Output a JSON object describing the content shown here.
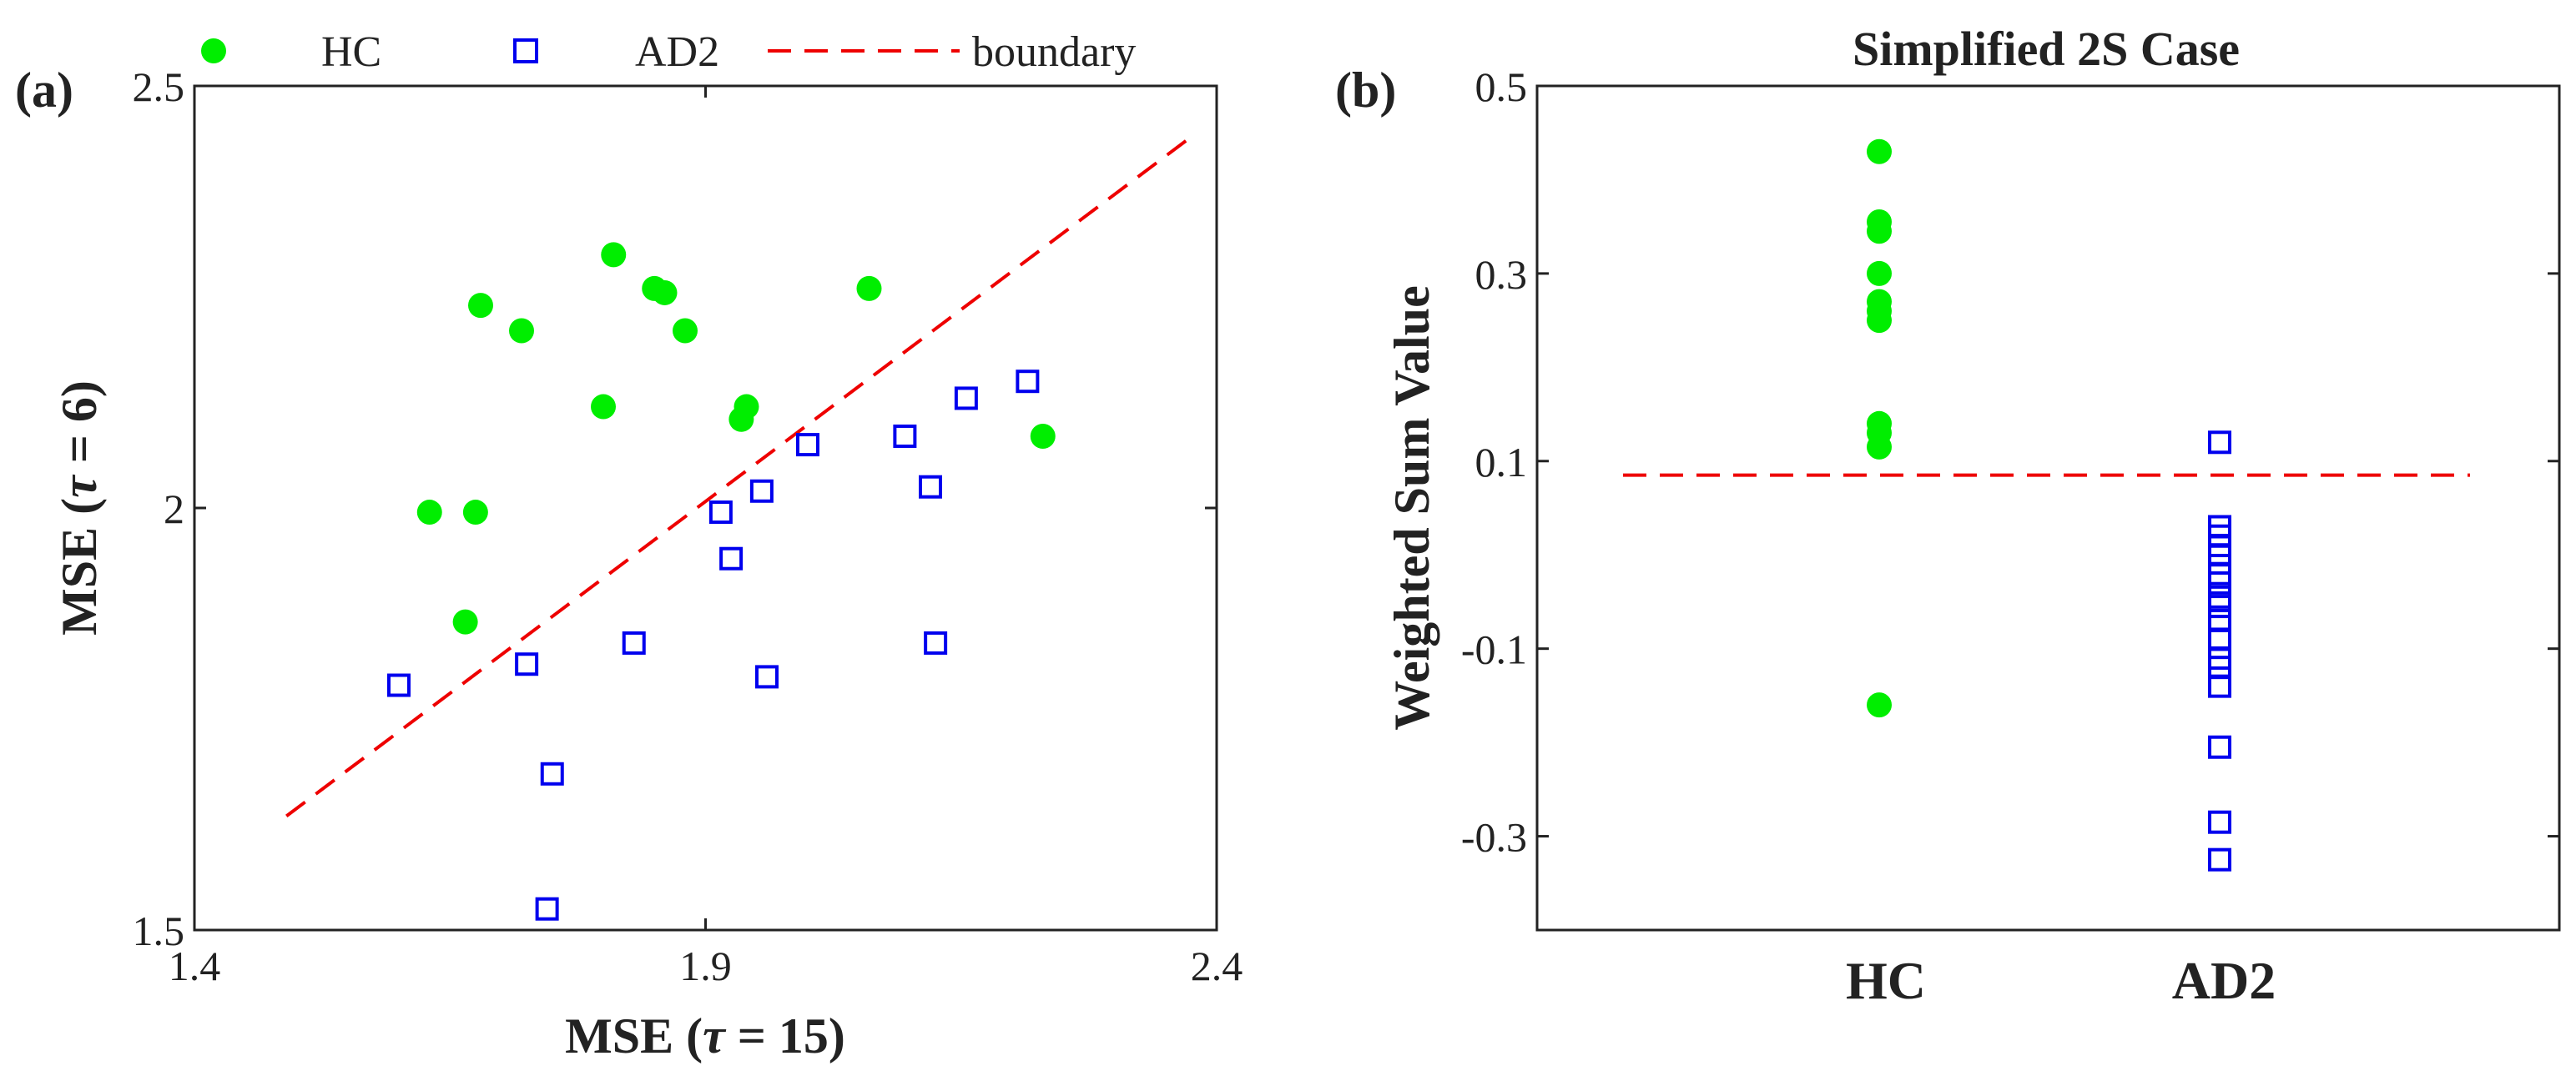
{
  "colors": {
    "hc": "#00ee00",
    "ad2": "#0000ee",
    "boundary": "#ee0000",
    "axis": "#222222"
  },
  "legend": {
    "hc": "HC",
    "ad2": "AD2",
    "boundary": "boundary",
    "placement": "top"
  },
  "panels": {
    "a": {
      "label": "(a)"
    },
    "b": {
      "label": "(b)"
    }
  },
  "chart_data": [
    {
      "type": "scatter",
      "panel": "(a)",
      "title": "",
      "xlabel_main": "MSE",
      "xlabel_tau": "τ",
      "xlabel_rest": " = 15)",
      "ylabel_main": "MSE",
      "ylabel_tau": "τ",
      "ylabel_rest": " = 6)",
      "xlim": [
        1.4,
        2.4
      ],
      "ylim": [
        1.5,
        2.5
      ],
      "xticks": [
        1.4,
        1.9,
        2.4
      ],
      "xtick_labels": [
        "1.4",
        "1.9",
        "2.4"
      ],
      "yticks": [
        1.5,
        2.0,
        2.5
      ],
      "ytick_labels": [
        "1.5",
        "2",
        "2.5"
      ],
      "series": [
        {
          "name": "HC",
          "marker": "filled-circle",
          "points": [
            [
              1.68,
              2.24
            ],
            [
              1.72,
              2.21
            ],
            [
              1.81,
              2.3
            ],
            [
              1.85,
              2.26
            ],
            [
              1.86,
              2.255
            ],
            [
              1.88,
              2.21
            ],
            [
              1.8,
              2.12
            ],
            [
              1.94,
              2.12
            ],
            [
              1.935,
              2.105
            ],
            [
              1.63,
              1.995
            ],
            [
              1.675,
              1.995
            ],
            [
              1.665,
              1.865
            ],
            [
              2.06,
              2.26
            ],
            [
              2.23,
              2.085
            ]
          ]
        },
        {
          "name": "AD2",
          "marker": "open-square",
          "points": [
            [
              1.6,
              1.79
            ],
            [
              1.725,
              1.815
            ],
            [
              1.75,
              1.685
            ],
            [
              1.745,
              1.525
            ],
            [
              1.83,
              1.84
            ],
            [
              1.915,
              1.995
            ],
            [
              1.925,
              1.94
            ],
            [
              1.955,
              2.02
            ],
            [
              1.96,
              1.8
            ],
            [
              2.0,
              2.075
            ],
            [
              2.095,
              2.085
            ],
            [
              2.12,
              2.025
            ],
            [
              2.125,
              1.84
            ],
            [
              2.155,
              2.13
            ],
            [
              2.215,
              2.15
            ]
          ]
        },
        {
          "name": "boundary",
          "style": "dashed",
          "points": [
            [
              1.49,
              1.635
            ],
            [
              2.37,
              2.435
            ]
          ]
        }
      ]
    },
    {
      "type": "scatter",
      "panel": "(b)",
      "title": "Simplified 2S Case",
      "ylabel": "Weighted Sum Value",
      "categories": [
        "HC",
        "AD2"
      ],
      "ylim": [
        -0.4,
        0.5
      ],
      "yticks": [
        0.5,
        0.3,
        0.1,
        -0.1,
        -0.3
      ],
      "ytick_labels": [
        "0.5",
        "0.3",
        "0.1",
        "-0.1",
        "-0.3"
      ],
      "series": [
        {
          "name": "HC",
          "category": "HC",
          "marker": "filled-circle",
          "values": [
            0.43,
            0.355,
            0.345,
            0.3,
            0.27,
            0.26,
            0.25,
            0.14,
            0.13,
            0.115,
            -0.16
          ]
        },
        {
          "name": "AD2",
          "category": "AD2",
          "marker": "open-square",
          "values": [
            0.12,
            0.03,
            0.02,
            0.01,
            0.0,
            -0.02,
            -0.03,
            -0.045,
            -0.055,
            -0.07,
            -0.09,
            -0.11,
            -0.12,
            -0.14,
            -0.205,
            -0.285,
            -0.325
          ]
        },
        {
          "name": "boundary",
          "style": "dashed",
          "y": 0.085
        }
      ]
    }
  ]
}
